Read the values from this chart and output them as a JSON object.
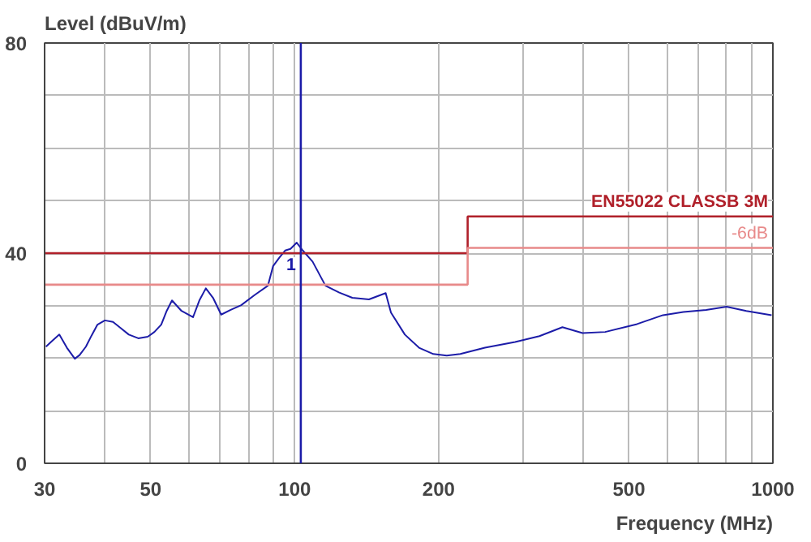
{
  "chart_data": {
    "type": "line",
    "xlabel": "Frequency (MHz)",
    "ylabel": "Level (dBuV/m)",
    "log": "x",
    "grid": true,
    "xlim": [
      30,
      1000
    ],
    "ylim": [
      0,
      80
    ],
    "xticks": [
      30,
      {
        "value": 40,
        "label": null
      },
      50,
      {
        "value": 60,
        "label": null
      },
      {
        "value": 70,
        "label": null
      },
      {
        "value": 80,
        "label": null
      },
      {
        "value": 90,
        "label": null
      },
      100,
      200,
      {
        "value": 300,
        "label": null
      },
      {
        "value": 400,
        "label": null
      },
      500,
      {
        "value": 600,
        "label": null
      },
      {
        "value": 700,
        "label": null
      },
      {
        "value": 800,
        "label": null
      },
      {
        "value": 900,
        "label": null
      },
      1000
    ],
    "yticks": [
      0,
      {
        "value": 10,
        "label": null
      },
      {
        "value": 20,
        "label": null
      },
      {
        "value": 30,
        "label": null
      },
      40,
      {
        "value": 50,
        "label": null
      },
      {
        "value": 60,
        "label": null
      },
      {
        "value": 70,
        "label": null
      },
      80
    ],
    "series": [
      {
        "color": "#1c1ca8",
        "x": [
          30.2,
          31.2,
          32.2,
          33.4,
          34.7,
          35.5,
          36.6,
          37.6,
          38.7,
          40.1,
          41.7,
          43.2,
          45,
          47.1,
          49.3,
          50.9,
          52.6,
          54,
          55.4,
          58,
          61.3,
          63.2,
          65.2,
          67.5,
          70.2,
          73.5,
          77.3,
          82.4,
          87.9,
          90.1,
          93,
          95.5,
          98,
          101,
          104,
          109,
          116,
          124,
          132,
          143,
          155,
          159,
          170,
          182,
          195,
          208,
          222,
          250,
          289,
          325,
          363,
          400,
          446,
          520,
          589,
          650,
          725,
          800,
          880,
          994
        ],
        "values": [
          22.2,
          23.4,
          24.5,
          22,
          19.9,
          20.6,
          22.2,
          24.3,
          26.4,
          27.2,
          26.9,
          25.8,
          24.5,
          23.8,
          24.1,
          25,
          26.4,
          29,
          31,
          29,
          27.8,
          31,
          33.3,
          31.5,
          28.3,
          29.2,
          30.1,
          32,
          33.8,
          37.5,
          39.2,
          40.5,
          40.8,
          42,
          40.5,
          38.4,
          33.8,
          32.5,
          31.5,
          31.2,
          32.4,
          28.7,
          24.5,
          22,
          20.8,
          20.5,
          20.8,
          22,
          23.1,
          24.2,
          25.9,
          24.8,
          25,
          26.5,
          28.2,
          28.8,
          29.2,
          29.8,
          29,
          28.2
        ]
      },
      {
        "type": "step",
        "name": "EN55022 CLASSB 3M",
        "color": "#b0202a",
        "x": [
          30,
          230,
          1000
        ],
        "values": [
          40,
          47,
          47
        ]
      },
      {
        "type": "step",
        "name": "-6dB",
        "color": "#e88a8a",
        "x": [
          30,
          230,
          1000
        ],
        "values": [
          34,
          41,
          41
        ]
      }
    ],
    "ref_lines": [
      {
        "axis": "x",
        "value": 103,
        "color": "#1c1ca8"
      }
    ],
    "annotations": [
      {
        "text": "1",
        "x": 103,
        "y": 38
      }
    ]
  }
}
